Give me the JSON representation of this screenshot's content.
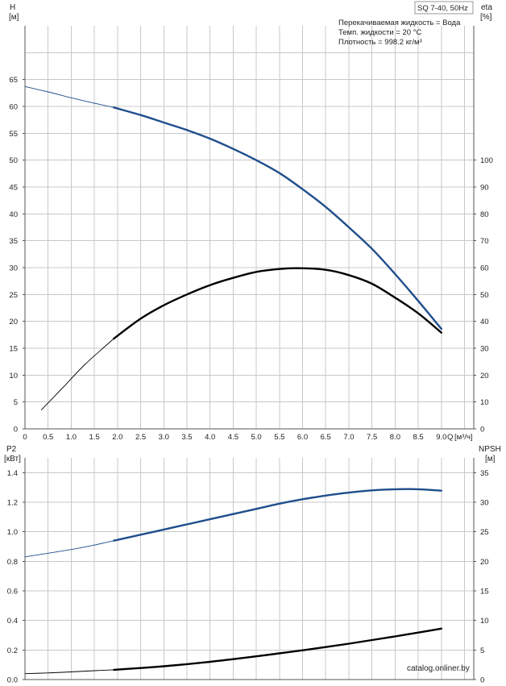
{
  "header": {
    "model": "SQ 7-40, 50Hz",
    "info": [
      "Перекачиваемая жидкость = Вода",
      "Темп. жидкости = 20 °C",
      "Плотность = 998.2 кг/м³"
    ]
  },
  "watermark": "catalog.onliner.by",
  "colors": {
    "blue": "#1f4e8c",
    "black": "#000000",
    "grid": "#c8c8c8"
  },
  "chart_data": [
    {
      "type": "line",
      "name": "top",
      "x_label": "Q",
      "x_unit": "[м³/ч]",
      "x_ticks": [
        "0",
        "0.5",
        "1.0",
        "1.5",
        "2.0",
        "2.5",
        "3.0",
        "3.5",
        "4.0",
        "4.5",
        "5.0",
        "5.5",
        "6.0",
        "6.5",
        "7.0",
        "7.5",
        "8.0",
        "8.5",
        "9.0"
      ],
      "xlim": [
        0,
        9.7
      ],
      "left_axis": {
        "label": "H",
        "unit": "[м]",
        "ticks": [
          "0",
          "5",
          "10",
          "15",
          "20",
          "25",
          "30",
          "35",
          "40",
          "45",
          "50",
          "55",
          "60",
          "65"
        ],
        "ylim": [
          0,
          75
        ]
      },
      "right_axis": {
        "label": "eta",
        "unit": "[%]",
        "ticks": [
          "0",
          "10",
          "20",
          "30",
          "40",
          "50",
          "60",
          "70",
          "80",
          "90",
          "100"
        ],
        "ylim": [
          0,
          150
        ]
      },
      "series": [
        {
          "axis": "left",
          "color": "#1f4e8c",
          "x": [
            0,
            0.5,
            1.0,
            1.5,
            1.92,
            2.5,
            3.0,
            3.5,
            4.0,
            4.5,
            5.0,
            5.5,
            6.0,
            6.5,
            7.0,
            7.5,
            8.0,
            8.5,
            9.0
          ],
          "y": [
            63.7,
            62.7,
            61.6,
            60.6,
            59.8,
            58.4,
            57.0,
            55.6,
            54.0,
            52.1,
            50.0,
            47.6,
            44.6,
            41.3,
            37.5,
            33.5,
            28.8,
            23.8,
            18.6
          ]
        },
        {
          "axis": "right",
          "color": "#000000",
          "x": [
            0.35,
            0.8,
            1.3,
            1.92,
            2.5,
            3.0,
            3.5,
            4.0,
            4.5,
            5.0,
            5.5,
            5.9,
            6.5,
            7.0,
            7.5,
            8.0,
            8.5,
            9.0
          ],
          "y": [
            7,
            15,
            24,
            33.6,
            41.0,
            46.0,
            50.0,
            53.5,
            56.2,
            58.4,
            59.5,
            59.8,
            59.2,
            57.2,
            54.0,
            48.8,
            43.0,
            35.8
          ]
        }
      ]
    },
    {
      "type": "line",
      "name": "bottom",
      "xlim": [
        0,
        9.7
      ],
      "left_axis": {
        "label": "P2",
        "unit": "[кВт]",
        "ticks": [
          "0.0",
          "0.2",
          "0.4",
          "0.6",
          "0.8",
          "1.0",
          "1.2",
          "1.4"
        ],
        "ylim": [
          0,
          1.5
        ]
      },
      "right_axis": {
        "label": "NPSH",
        "unit": "[м]",
        "ticks": [
          "0",
          "5",
          "10",
          "15",
          "20",
          "25",
          "30",
          "35"
        ],
        "ylim": [
          0,
          37.5
        ]
      },
      "series": [
        {
          "axis": "left",
          "color": "#1f4e8c",
          "x": [
            0,
            0.5,
            1.0,
            1.5,
            1.92,
            2.5,
            3.0,
            3.5,
            4.0,
            4.5,
            5.0,
            5.5,
            6.0,
            6.5,
            7.0,
            7.5,
            8.0,
            8.5,
            9.0
          ],
          "y": [
            0.83,
            0.855,
            0.88,
            0.91,
            0.94,
            0.98,
            1.015,
            1.05,
            1.085,
            1.12,
            1.155,
            1.19,
            1.22,
            1.245,
            1.265,
            1.28,
            1.288,
            1.288,
            1.278
          ]
        },
        {
          "axis": "left",
          "color": "#000000",
          "x": [
            0,
            0.5,
            1.0,
            1.5,
            1.92,
            2.5,
            3.0,
            3.5,
            4.0,
            4.5,
            5.0,
            5.5,
            6.0,
            6.5,
            7.0,
            7.5,
            8.0,
            8.5,
            9.0
          ],
          "y": [
            0.04,
            0.045,
            0.052,
            0.06,
            0.066,
            0.078,
            0.09,
            0.104,
            0.12,
            0.138,
            0.157,
            0.177,
            0.198,
            0.22,
            0.243,
            0.267,
            0.292,
            0.318,
            0.345
          ]
        }
      ]
    }
  ]
}
